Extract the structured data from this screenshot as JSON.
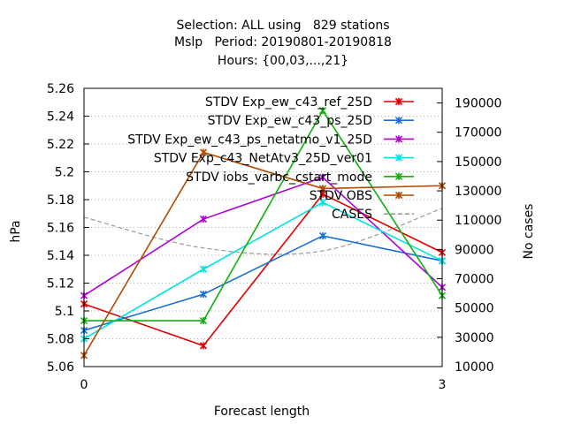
{
  "chart_data": {
    "type": "line",
    "title_lines": [
      "Selection: ALL using   829 stations",
      "Mslp   Period: 20190801-20190818",
      "Hours: {00,03,...,21}"
    ],
    "xlabel": "Forecast length",
    "ylabel": "hPa",
    "y2label": "No cases",
    "x": [
      0,
      1,
      2,
      3
    ],
    "x_tick_labels": [
      "0",
      "3"
    ],
    "xlim": [
      0,
      3
    ],
    "ylim": [
      5.06,
      5.26
    ],
    "y_ticks": [
      "5.06",
      "5.08",
      "5.1",
      "5.12",
      "5.14",
      "5.16",
      "5.18",
      "5.2",
      "5.22",
      "5.24",
      "5.26"
    ],
    "y2lim": [
      10000,
      200000
    ],
    "y2_ticks": [
      "10000",
      "30000",
      "50000",
      "70000",
      "90000",
      "110000",
      "130000",
      "150000",
      "170000",
      "190000"
    ],
    "grid": true,
    "legend_position": "top-right",
    "series": [
      {
        "name": "STDV Exp_ew_c43_ref_25D",
        "color": "#e00000",
        "values": [
          5.105,
          5.075,
          5.184,
          5.142
        ]
      },
      {
        "name": "STDV Exp_ew_c43_ps_25D",
        "color": "#1a6fd6",
        "values": [
          5.086,
          5.112,
          5.154,
          5.136
        ]
      },
      {
        "name": "STDV Exp_ew_c43_ps_netatmo_v1_25D",
        "color": "#b000d8",
        "values": [
          5.111,
          5.166,
          5.196,
          5.117
        ]
      },
      {
        "name": "STDV Exp_c43_NetAtv3_25D_ver01",
        "color": "#00e4e4",
        "values": [
          5.08,
          5.13,
          5.178,
          5.136
        ]
      },
      {
        "name": "STDV iobs_varbc_cstart_mode",
        "color": "#10b010",
        "values": [
          5.093,
          5.093,
          5.244,
          5.111
        ]
      },
      {
        "name": "STDV OBS",
        "color": "#b04a00",
        "values": [
          5.068,
          5.214,
          5.188,
          5.19
        ]
      }
    ],
    "cases": {
      "name": "CASES",
      "color": "#9a9a9a",
      "axis": "right",
      "values": [
        112000,
        91000,
        89000,
        118000
      ]
    }
  }
}
